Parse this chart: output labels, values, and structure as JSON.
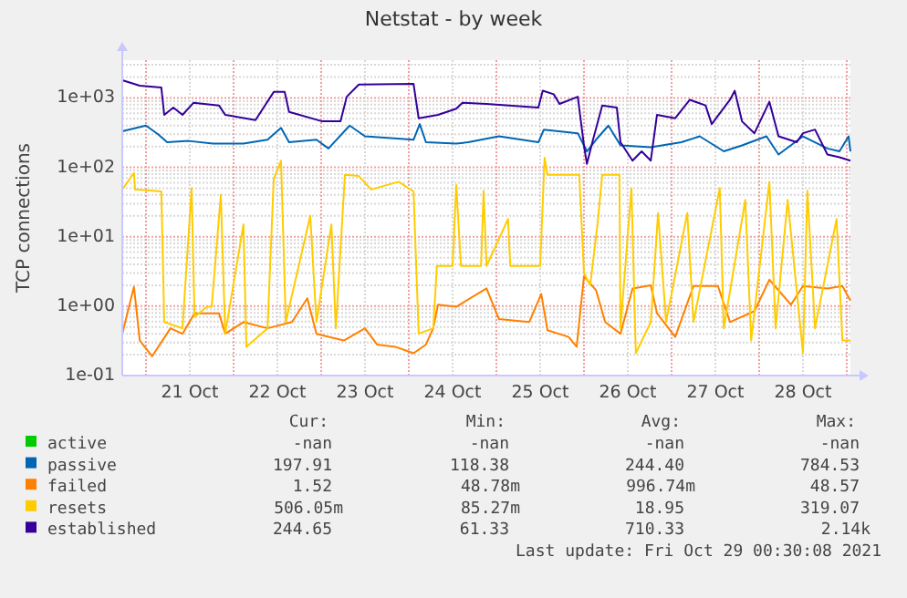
{
  "chart_data": {
    "type": "line",
    "title": "Netstat - by week",
    "ylabel": "TCP connections",
    "log": "y",
    "grid": true,
    "legend": "bottom left",
    "marker": "none",
    "line_style": "solid",
    "xlim": [
      "2021-10-20T17:30",
      "2021-10-29T01:00"
    ],
    "ylim": [
      0.1,
      3500
    ],
    "yticks": [
      {
        "value": 0.1,
        "label": "1e-01"
      },
      {
        "value": 1,
        "label": "1e+00"
      },
      {
        "value": 10,
        "label": "1e+01"
      },
      {
        "value": 100,
        "label": "1e+02"
      },
      {
        "value": 1000,
        "label": "1e+03"
      }
    ],
    "xticks": [
      {
        "value": "2021-10-21T00:00",
        "label": null
      },
      {
        "value": "2021-10-21T12:00",
        "label": "21 Oct"
      },
      {
        "value": "2021-10-22T00:00",
        "label": null
      },
      {
        "value": "2021-10-22T12:00",
        "label": "22 Oct"
      },
      {
        "value": "2021-10-23T00:00",
        "label": null
      },
      {
        "value": "2021-10-23T12:00",
        "label": "23 Oct"
      },
      {
        "value": "2021-10-24T00:00",
        "label": null
      },
      {
        "value": "2021-10-24T12:00",
        "label": "24 Oct"
      },
      {
        "value": "2021-10-25T00:00",
        "label": null
      },
      {
        "value": "2021-10-25T12:00",
        "label": "25 Oct"
      },
      {
        "value": "2021-10-26T00:00",
        "label": null
      },
      {
        "value": "2021-10-26T12:00",
        "label": "26 Oct"
      },
      {
        "value": "2021-10-27T00:00",
        "label": null
      },
      {
        "value": "2021-10-27T12:00",
        "label": "27 Oct"
      },
      {
        "value": "2021-10-28T00:00",
        "label": null
      },
      {
        "value": "2021-10-28T12:00",
        "label": "28 Oct"
      },
      {
        "value": "2021-10-29T00:00",
        "label": null
      }
    ],
    "series": [
      {
        "name": "active",
        "color": "#00cc00"
      },
      {
        "name": "passive",
        "color": "#0066b3",
        "x": [
          "2021-10-20T17:30",
          "2021-10-21T00:00",
          "2021-10-21T03:18",
          "2021-10-21T05:48",
          "2021-10-21T11:42",
          "2021-10-21T18:18",
          "2021-10-22T02:42",
          "2021-10-22T09:18",
          "2021-10-22T13:00",
          "2021-10-22T15:12",
          "2021-10-22T22:42",
          "2021-10-23T02:00",
          "2021-10-23T07:48",
          "2021-10-23T12:00",
          "2021-10-24T01:18",
          "2021-10-24T03:00",
          "2021-10-24T04:42",
          "2021-10-24T13:00",
          "2021-10-24T16:18",
          "2021-10-25T00:42",
          "2021-10-25T11:30",
          "2021-10-25T13:00",
          "2021-10-25T22:18",
          "2021-10-26T00:48",
          "2021-10-26T03:18",
          "2021-10-26T06:42",
          "2021-10-26T10:00",
          "2021-10-26T18:18",
          "2021-10-27T02:42",
          "2021-10-27T07:42",
          "2021-10-27T14:18",
          "2021-10-27T19:18",
          "2021-10-28T02:00",
          "2021-10-28T05:18",
          "2021-10-28T12:00",
          "2021-10-28T18:42",
          "2021-10-28T22:00",
          "2021-10-29T00:30",
          "2021-10-29T01:00"
        ],
        "values": [
          330,
          400,
          300,
          230,
          240,
          220,
          220,
          250,
          370,
          230,
          250,
          187,
          400,
          280,
          250,
          420,
          230,
          220,
          230,
          280,
          230,
          350,
          310,
          170,
          250,
          400,
          207,
          195,
          230,
          280,
          170,
          207,
          280,
          153,
          280,
          187,
          170,
          280,
          170
        ]
      },
      {
        "name": "failed",
        "color": "#ff8000",
        "x": [
          "2021-10-20T17:30",
          "2021-10-20T20:42",
          "2021-10-20T22:18",
          "2021-10-21T01:42",
          "2021-10-21T06:42",
          "2021-10-21T10:00",
          "2021-10-21T13:18",
          "2021-10-21T20:00",
          "2021-10-21T21:42",
          "2021-10-22T02:42",
          "2021-10-22T09:18",
          "2021-10-22T16:00",
          "2021-10-22T20:12",
          "2021-10-22T22:42",
          "2021-10-23T06:12",
          "2021-10-23T12:00",
          "2021-10-23T15:18",
          "2021-10-23T20:18",
          "2021-10-24T01:18",
          "2021-10-24T04:42",
          "2021-10-24T06:42",
          "2021-10-24T08:00",
          "2021-10-24T13:00",
          "2021-10-24T21:18",
          "2021-10-25T00:42",
          "2021-10-25T09:00",
          "2021-10-25T12:18",
          "2021-10-25T14:00",
          "2021-10-25T19:48",
          "2021-10-25T22:00",
          "2021-10-26T00:00",
          "2021-10-26T03:18",
          "2021-10-26T05:48",
          "2021-10-26T10:00",
          "2021-10-26T13:18",
          "2021-10-26T18:18",
          "2021-10-26T20:00",
          "2021-10-27T01:00",
          "2021-10-27T06:00",
          "2021-10-27T12:42",
          "2021-10-27T16:00",
          "2021-10-27T22:42",
          "2021-10-28T02:48",
          "2021-10-28T08:42",
          "2021-10-28T12:00",
          "2021-10-28T18:42",
          "2021-10-28T22:48",
          "2021-10-29T01:00"
        ],
        "values": [
          0.4,
          1.9,
          0.32,
          0.19,
          0.48,
          0.4,
          0.79,
          0.79,
          0.4,
          0.59,
          0.48,
          0.59,
          1.3,
          0.4,
          0.32,
          0.48,
          0.28,
          0.26,
          0.21,
          0.28,
          0.48,
          1.05,
          0.98,
          1.8,
          0.65,
          0.59,
          1.5,
          0.45,
          0.36,
          0.26,
          2.7,
          1.7,
          0.59,
          0.4,
          1.8,
          2.0,
          0.79,
          0.36,
          1.95,
          1.95,
          0.59,
          0.85,
          2.4,
          1.05,
          1.95,
          1.8,
          1.95,
          1.2
        ]
      },
      {
        "name": "resets",
        "color": "#ffcc00",
        "x": [
          "2021-10-20T17:30",
          "2021-10-20T20:42",
          "2021-10-20T21:00",
          "2021-10-21T04:12",
          "2021-10-21T05:00",
          "2021-10-21T10:00",
          "2021-10-21T12:30",
          "2021-10-21T13:18",
          "2021-10-21T16:42",
          "2021-10-21T18:00",
          "2021-10-21T20:30",
          "2021-10-21T21:42",
          "2021-10-22T02:42",
          "2021-10-22T03:30",
          "2021-10-22T09:18",
          "2021-10-22T11:00",
          "2021-10-22T13:00",
          "2021-10-22T14:18",
          "2021-10-22T21:00",
          "2021-10-22T22:42",
          "2021-10-23T02:48",
          "2021-10-23T04:00",
          "2021-10-23T06:30",
          "2021-10-23T10:18",
          "2021-10-23T13:42",
          "2021-10-23T21:12",
          "2021-10-24T01:18",
          "2021-10-24T02:42",
          "2021-10-24T06:42",
          "2021-10-24T07:42",
          "2021-10-24T12:00",
          "2021-10-24T13:00",
          "2021-10-24T14:18",
          "2021-10-24T19:48",
          "2021-10-24T20:30",
          "2021-10-24T21:18",
          "2021-10-25T03:12",
          "2021-10-25T03:48",
          "2021-10-25T12:00",
          "2021-10-25T13:12",
          "2021-10-25T14:00",
          "2021-10-25T22:42",
          "2021-10-26T00:00",
          "2021-10-26T01:42",
          "2021-10-26T03:42",
          "2021-10-26T05:00",
          "2021-10-26T09:42",
          "2021-10-26T10:00",
          "2021-10-26T13:00",
          "2021-10-26T14:12",
          "2021-10-26T18:18",
          "2021-10-26T20:18",
          "2021-10-26T22:30",
          "2021-10-27T04:18",
          "2021-10-27T06:00",
          "2021-10-27T13:12",
          "2021-10-27T14:18",
          "2021-10-27T20:12",
          "2021-10-27T21:48",
          "2021-10-28T02:48",
          "2021-10-28T04:30",
          "2021-10-28T07:48",
          "2021-10-28T12:00",
          "2021-10-28T13:12",
          "2021-10-28T15:18",
          "2021-10-28T21:12",
          "2021-10-28T22:48",
          "2021-10-29T01:00"
        ],
        "values": [
          48,
          83,
          48,
          45,
          0.59,
          0.48,
          50,
          0.7,
          0.98,
          0.98,
          40,
          0.4,
          15,
          0.26,
          0.48,
          68,
          125,
          0.59,
          20,
          0.59,
          15,
          0.48,
          78,
          75,
          48,
          62,
          45,
          0.4,
          0.48,
          3.8,
          3.8,
          56,
          3.8,
          3.8,
          46,
          3.8,
          18,
          3.8,
          3.8,
          138,
          78,
          78,
          3,
          2.0,
          15,
          78,
          78,
          0.48,
          50,
          0.21,
          0.59,
          22,
          0.59,
          22,
          0.59,
          50,
          0.48,
          34,
          0.32,
          62,
          0.48,
          34,
          0.21,
          46,
          0.48,
          18,
          0.32,
          0.32
        ]
      },
      {
        "name": "established",
        "color": "#330099",
        "x": [
          "2021-10-20T17:30",
          "2021-10-20T22:18",
          "2021-10-21T04:12",
          "2021-10-21T05:00",
          "2021-10-21T07:30",
          "2021-10-21T10:00",
          "2021-10-21T13:00",
          "2021-10-21T20:00",
          "2021-10-21T21:42",
          "2021-10-22T06:00",
          "2021-10-22T11:00",
          "2021-10-22T14:00",
          "2021-10-22T15:12",
          "2021-10-23T00:18",
          "2021-10-23T05:18",
          "2021-10-23T07:00",
          "2021-10-23T10:18",
          "2021-10-24T01:18",
          "2021-10-24T02:42",
          "2021-10-24T08:00",
          "2021-10-24T13:00",
          "2021-10-24T14:42",
          "2021-10-24T21:18",
          "2021-10-25T11:30",
          "2021-10-25T12:42",
          "2021-10-25T15:42",
          "2021-10-25T17:18",
          "2021-10-25T22:18",
          "2021-10-26T00:00",
          "2021-10-26T00:48",
          "2021-10-26T02:30",
          "2021-10-26T05:00",
          "2021-10-26T09:00",
          "2021-10-26T10:00",
          "2021-10-26T13:18",
          "2021-10-26T15:48",
          "2021-10-26T18:18",
          "2021-10-26T20:00",
          "2021-10-27T01:00",
          "2021-10-27T05:00",
          "2021-10-27T09:18",
          "2021-10-27T11:00",
          "2021-10-27T16:00",
          "2021-10-27T17:18",
          "2021-10-27T19:18",
          "2021-10-27T22:42",
          "2021-10-28T02:48",
          "2021-10-28T05:18",
          "2021-10-28T10:18",
          "2021-10-28T12:00",
          "2021-10-28T15:18",
          "2021-10-28T18:42",
          "2021-10-28T22:00",
          "2021-10-29T01:00"
        ],
        "values": [
          1800,
          1500,
          1410,
          570,
          725,
          570,
          850,
          780,
          570,
          480,
          1220,
          1220,
          630,
          460,
          460,
          1040,
          1560,
          1600,
          510,
          570,
          700,
          850,
          820,
          725,
          1270,
          1130,
          820,
          1040,
          207,
          112,
          253,
          780,
          725,
          230,
          125,
          170,
          125,
          570,
          510,
          940,
          780,
          420,
          940,
          1270,
          460,
          310,
          880,
          280,
          230,
          310,
          350,
          153,
          140,
          125
        ]
      }
    ],
    "annotations": [
      "Cur:",
      "Min:",
      "Avg:",
      "Max:",
      "-nan",
      "-nan",
      "-nan",
      "-nan",
      "197.91",
      "118.38",
      "244.40",
      "784.53",
      "1.52",
      "48.78m",
      "996.74m",
      "48.57",
      "506.05m",
      "85.27m",
      "18.95",
      "319.07",
      "244.65",
      "61.33",
      "710.33",
      "2.14k",
      "Last update: Fri Oct 29 00:30:08 2021"
    ]
  }
}
